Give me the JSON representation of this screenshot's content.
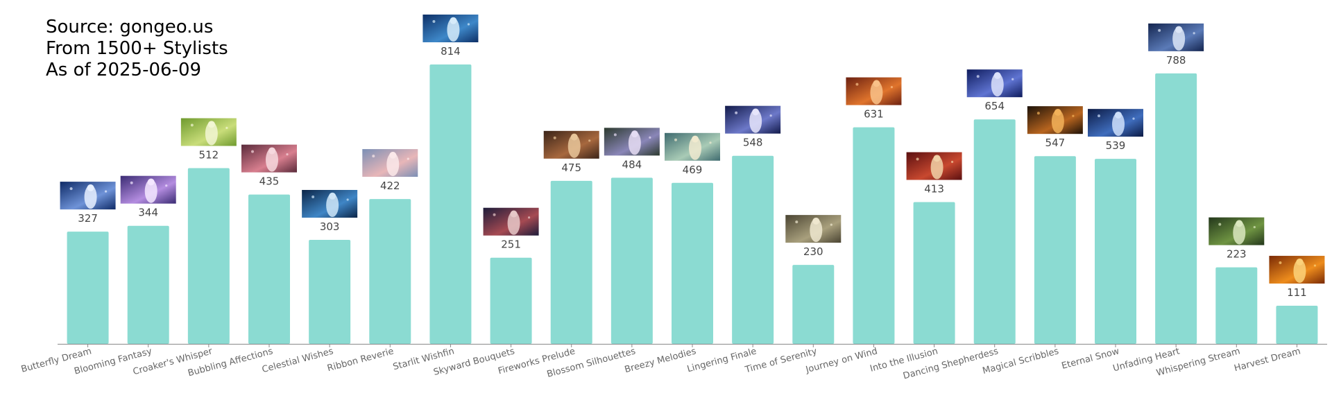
{
  "info": {
    "source": "Source: gongeo.us",
    "stylists": "From 1500+ Stylists",
    "date": "As of 2025-06-09"
  },
  "colors": {
    "bar": "#8BDBD2",
    "axis": "#888888"
  },
  "chart_data": {
    "type": "bar",
    "categories": [
      "Butterfly Dream",
      "Blooming Fantasy",
      "Croaker's Whisper",
      "Bubbling Affections",
      "Celestial Wishes",
      "Ribbon Reverie",
      "Starlit Wishfin",
      "Skyward Bouquets",
      "Fireworks Prelude",
      "Blossom Silhouettes",
      "Breezy Melodies",
      "Lingering Finale",
      "Time of Serenity",
      "Journey on Wind",
      "Into the Illusion",
      "Dancing Shepherdess",
      "Magical Scribbles",
      "Eternal Snow",
      "Unfading Heart",
      "Whispering Stream",
      "Harvest Dream"
    ],
    "values": [
      327,
      344,
      512,
      435,
      303,
      422,
      814,
      251,
      475,
      484,
      469,
      548,
      230,
      631,
      413,
      654,
      547,
      539,
      788,
      223,
      111
    ],
    "thumbnail_palettes": [
      [
        "#0e2a66",
        "#6f93d8",
        "#e8f0ff"
      ],
      [
        "#3a2b73",
        "#b48de0",
        "#f4e8ff"
      ],
      [
        "#6f9a2e",
        "#c9dd7a",
        "#f2f6d4"
      ],
      [
        "#5a2a3a",
        "#d87f8f",
        "#f7d9de"
      ],
      [
        "#0b2547",
        "#3f86c6",
        "#cfe6f8"
      ],
      [
        "#7b8fb5",
        "#e8b6b8",
        "#fbe9ea"
      ],
      [
        "#0d2f66",
        "#3e88c9",
        "#d7ecfa"
      ],
      [
        "#1d1c3a",
        "#a64a52",
        "#e7c9c9"
      ],
      [
        "#3b2418",
        "#a7683e",
        "#e9c79b"
      ],
      [
        "#2c3a2e",
        "#8a86b8",
        "#e6ddf3"
      ],
      [
        "#3f6b6f",
        "#a9cbb6",
        "#f1ead0"
      ],
      [
        "#121a4a",
        "#6d79c9",
        "#e7e6fb"
      ],
      [
        "#4a4432",
        "#a9a07d",
        "#efe8d0"
      ],
      [
        "#6b2010",
        "#e0742c",
        "#f9c28a"
      ],
      [
        "#5a0f10",
        "#c8482f",
        "#f1d2a8"
      ],
      [
        "#0e1b5c",
        "#5f74d2",
        "#dde3fb"
      ],
      [
        "#1b1108",
        "#b8651f",
        "#f2b25a"
      ],
      [
        "#0b1a44",
        "#3f6dbd",
        "#cfe0fb"
      ],
      [
        "#13244e",
        "#5b7bb8",
        "#dce6f7"
      ],
      [
        "#23371b",
        "#6f9442",
        "#dbe8c0"
      ],
      [
        "#7a2a05",
        "#ee8d1d",
        "#fbd27a"
      ]
    ]
  }
}
